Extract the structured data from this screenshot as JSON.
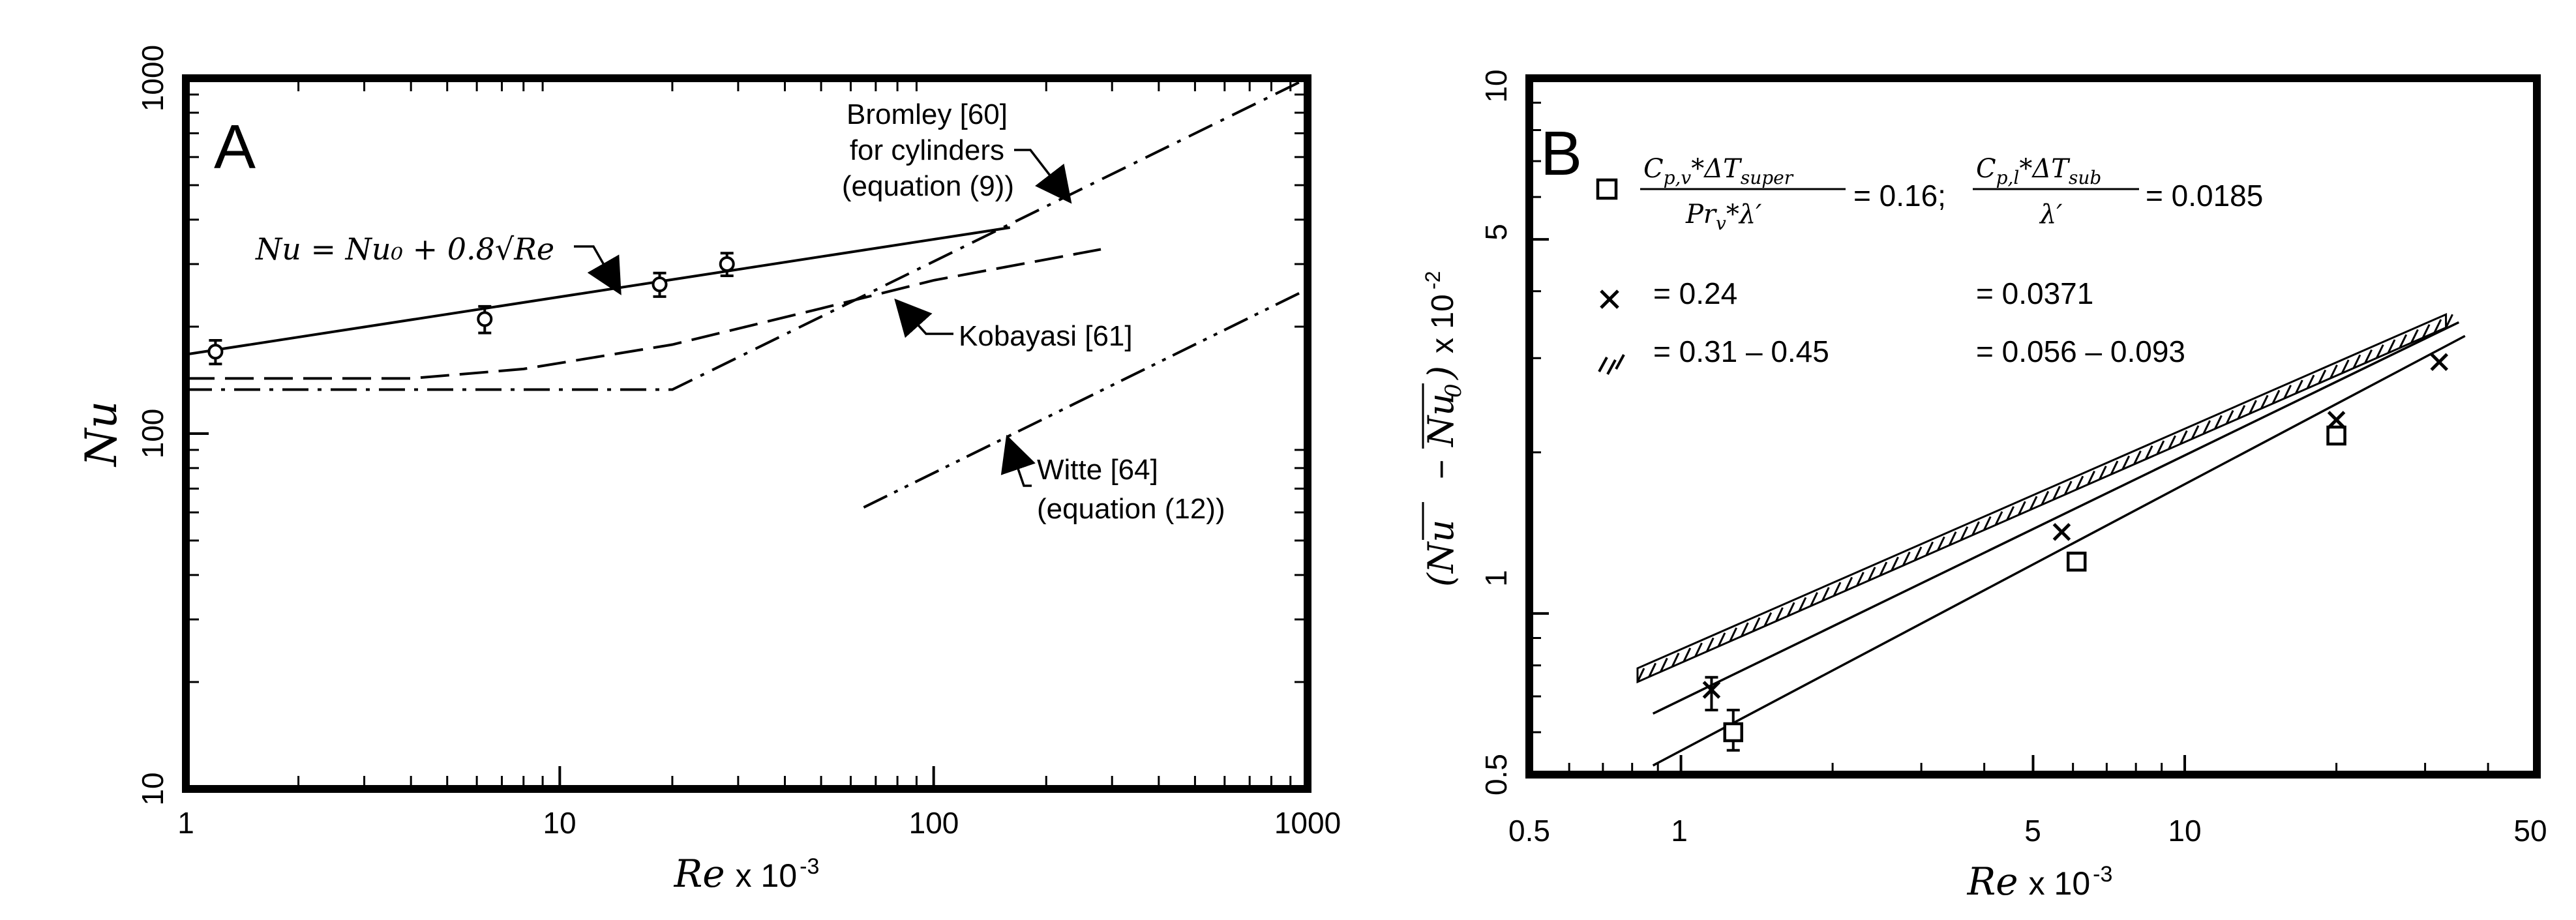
{
  "chart_data": [
    {
      "panel": "A",
      "type": "line",
      "xscale": "log",
      "yscale": "log",
      "xlim": [
        1,
        1000
      ],
      "ylim": [
        10,
        1000
      ],
      "xticks": [
        "1",
        "10",
        "100",
        "1000"
      ],
      "yticks": [
        "10",
        "100",
        "1000"
      ],
      "xlabel_main": "Re",
      "xlabel_suffix": "x 10",
      "xlabel_exp": "-3",
      "ylabel": "Nu",
      "equation_label": "Nu = Nu₀ + 0.8√Re",
      "series": [
        {
          "key": "correlation",
          "style": "solid",
          "x": [
            1,
            160
          ],
          "y": [
            167,
            380
          ]
        },
        {
          "key": "kobayasi",
          "style": "dashed",
          "x": [
            1,
            4,
            8,
            20,
            50,
            100,
            280
          ],
          "y": [
            143,
            143,
            152,
            178,
            225,
            270,
            330
          ]
        },
        {
          "key": "bromley",
          "style": "dashdot",
          "x": [
            1,
            20,
            1000
          ],
          "y": [
            133,
            133,
            1000
          ]
        },
        {
          "key": "witte",
          "style": "dashdotdot",
          "x": [
            65,
            1000
          ],
          "y": [
            62,
            255
          ]
        }
      ],
      "points": {
        "x": [
          1.2,
          6.3,
          18.5,
          28
        ],
        "y": [
          170,
          210,
          263,
          300
        ],
        "err_low": [
          157,
          192,
          243,
          278
        ],
        "err_high": [
          183,
          228,
          283,
          322
        ]
      },
      "annotations": {
        "bromley": [
          "Bromley [60]",
          "for cylinders",
          "(equation (9))"
        ],
        "kobayasi": "Kobayasi [61]",
        "witte": [
          "Witte [64]",
          "(equation (12))"
        ]
      }
    },
    {
      "panel": "B",
      "type": "scatter",
      "xscale": "log",
      "yscale": "log",
      "xlim": [
        0.5,
        50
      ],
      "ylim": [
        0.5,
        10
      ],
      "xticks": [
        "0.5",
        "1",
        "5",
        "10",
        "50"
      ],
      "yticks": [
        "0.5",
        "1",
        "5",
        "10"
      ],
      "xlabel_main": "Re",
      "xlabel_suffix": "x 10",
      "xlabel_exp": "-3",
      "ylabel_suffix": "x 10",
      "ylabel_exp": "-2",
      "legend": {
        "header_eq1": "= 0.16;",
        "header_eq2": "= 0.0185",
        "row2_a": "= 0.24",
        "row2_b": "= 0.0371",
        "row3_a": "= 0.31 – 0.45",
        "row3_b": "= 0.056 – 0.093"
      },
      "series": [
        {
          "key": "square",
          "marker": "square",
          "x": [
            1.27,
            6.1,
            20
          ],
          "y": [
            0.6,
            1.25,
            2.15
          ],
          "line_x": [
            0.88,
            36
          ],
          "line_y": [
            0.52,
            3.3
          ]
        },
        {
          "key": "cross",
          "marker": "x",
          "x": [
            1.15,
            5.7,
            20,
            32
          ],
          "y": [
            0.72,
            1.42,
            2.3,
            2.95
          ],
          "line_x": [
            0.88,
            35
          ],
          "line_y": [
            0.65,
            3.5
          ]
        }
      ],
      "hatched_band": {
        "x": [
          0.82,
          33
        ],
        "y_low": [
          0.745,
          3.42
        ],
        "y_high": [
          0.79,
          3.62
        ]
      },
      "errorbars": [
        {
          "x": 1.15,
          "low": 0.66,
          "high": 0.76
        },
        {
          "x": 1.27,
          "low": 0.555,
          "high": 0.66
        }
      ]
    }
  ]
}
